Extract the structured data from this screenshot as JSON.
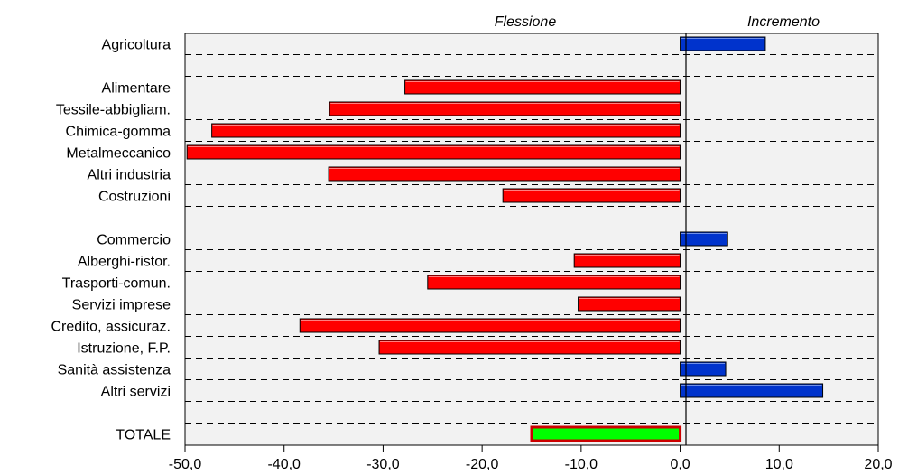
{
  "chart_data": {
    "type": "bar",
    "orientation": "horizontal",
    "header_left": "Flessione",
    "header_right": "Incremento",
    "rows": [
      {
        "label": "Agricoltura",
        "value": 8.6
      },
      {
        "label": "",
        "value": null
      },
      {
        "label": "Alimentare",
        "value": -27.8
      },
      {
        "label": "Tessile-abbigliam.",
        "value": -35.4
      },
      {
        "label": "Chimica-gomma",
        "value": -47.3
      },
      {
        "label": "Metalmeccanico",
        "value": -49.8
      },
      {
        "label": "Altri industria",
        "value": -35.5
      },
      {
        "label": "Costruzioni",
        "value": -17.9
      },
      {
        "label": "",
        "value": null
      },
      {
        "label": "Commercio",
        "value": 4.8
      },
      {
        "label": "Alberghi-ristor.",
        "value": -10.7
      },
      {
        "label": "Trasporti-comun.",
        "value": -25.5
      },
      {
        "label": "Servizi imprese",
        "value": -10.3
      },
      {
        "label": "Credito, assicuraz.",
        "value": -38.4
      },
      {
        "label": "Istruzione, F.P.",
        "value": -30.4
      },
      {
        "label": "Sanità assistenza",
        "value": 4.6
      },
      {
        "label": "Altri servizi",
        "value": 14.4
      },
      {
        "label": "",
        "value": null
      },
      {
        "label": "TOTALE",
        "value": -15.0,
        "highlight": true
      }
    ],
    "xlim": [
      -50,
      20
    ],
    "xticks": [
      -50,
      -40,
      -30,
      -20,
      -10,
      0,
      10,
      20
    ],
    "xtick_labels": [
      "-50,0",
      "-40,0",
      "-30,0",
      "-20,0",
      "-10,0",
      "0,0",
      "10,0",
      "20,0"
    ],
    "grid": "dashed horizontal",
    "colors": {
      "negative": "#ff0000",
      "positive": "#0033cc",
      "total_fill": "#00ff00",
      "total_border": "#cc0000",
      "plot_bg": "#f2f2f2"
    }
  }
}
